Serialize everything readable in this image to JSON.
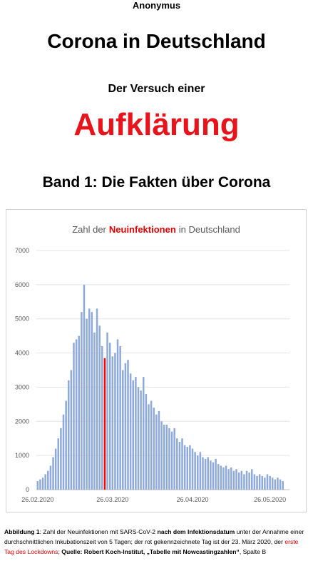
{
  "author": "Anonymus",
  "title": "Corona in Deutschland",
  "subtitle": "Der Versuch einer",
  "headline": "Aufklärung",
  "band": "Band 1: Die Fakten über Corona",
  "chart_data": {
    "type": "bar",
    "title": [
      "Zahl der",
      "Neuinfektionen",
      "in Deutschland"
    ],
    "title_colors": [
      "#595959",
      "#e00000",
      "#595959"
    ],
    "categories": [
      "26.02.2020",
      null,
      null,
      null,
      null,
      null,
      null,
      null,
      null,
      null,
      null,
      null,
      null,
      null,
      null,
      null,
      null,
      null,
      null,
      null,
      null,
      null,
      null,
      null,
      null,
      null,
      null,
      null,
      null,
      "26.03.2020",
      null,
      null,
      null,
      null,
      null,
      null,
      null,
      null,
      null,
      null,
      null,
      null,
      null,
      null,
      null,
      null,
      null,
      null,
      null,
      null,
      null,
      null,
      null,
      null,
      null,
      null,
      null,
      null,
      null,
      null,
      "26.04.2020",
      null,
      null,
      null,
      null,
      null,
      null,
      null,
      null,
      null,
      null,
      null,
      null,
      null,
      null,
      null,
      null,
      null,
      null,
      null,
      null,
      null,
      null,
      null,
      null,
      null,
      null,
      null,
      null,
      null,
      "26.05.2020",
      null,
      null,
      null,
      null,
      null
    ],
    "values": [
      250,
      300,
      350,
      450,
      550,
      700,
      950,
      1200,
      1500,
      1800,
      2200,
      2600,
      3200,
      3500,
      4300,
      4400,
      4500,
      5200,
      6000,
      5000,
      5300,
      5200,
      4600,
      5300,
      4800,
      4200,
      3850,
      4600,
      4300,
      3900,
      4000,
      4400,
      4200,
      3500,
      3700,
      3800,
      3400,
      3200,
      3300,
      3000,
      2900,
      3300,
      2800,
      2500,
      2600,
      2400,
      2200,
      2300,
      2000,
      1900,
      1900,
      1800,
      1700,
      1800,
      1500,
      1400,
      1500,
      1300,
      1250,
      1300,
      1200,
      1100,
      1000,
      1100,
      950,
      900,
      950,
      850,
      800,
      900,
      750,
      700,
      650,
      700,
      600,
      650,
      550,
      600,
      500,
      550,
      450,
      550,
      500,
      600,
      450,
      400,
      450,
      400,
      350,
      450,
      400,
      350,
      300,
      350,
      300,
      250
    ],
    "color": "#8eaadb",
    "highlight": {
      "index": 26,
      "color": "#ff0000"
    },
    "ylim": [
      0,
      7000
    ],
    "yticks": [
      0,
      1000,
      2000,
      3000,
      4000,
      5000,
      6000,
      7000
    ],
    "grid": true
  },
  "caption": [
    {
      "text": "Abbildung 1",
      "bold": true
    },
    {
      "text": ": Zahl der Neuinfektionen mit SARS-CoV-2 "
    },
    {
      "text": "nach dem Infektionsdatum",
      "bold": true
    },
    {
      "text": " unter der Annahme einer durchschnittlichen Inkubationszeit von 5 Tagen; der rot gekennzeichnete Tag ist der 23. März 2020, der "
    },
    {
      "text": "erste Tag des Lockdowns",
      "color": "#e00000"
    },
    {
      "text": "; "
    },
    {
      "text": "Quelle: Robert Koch-Institut, „Tabelle mit Nowcastingzahlen“",
      "bold": true
    },
    {
      "text": ", Spalte B"
    }
  ]
}
